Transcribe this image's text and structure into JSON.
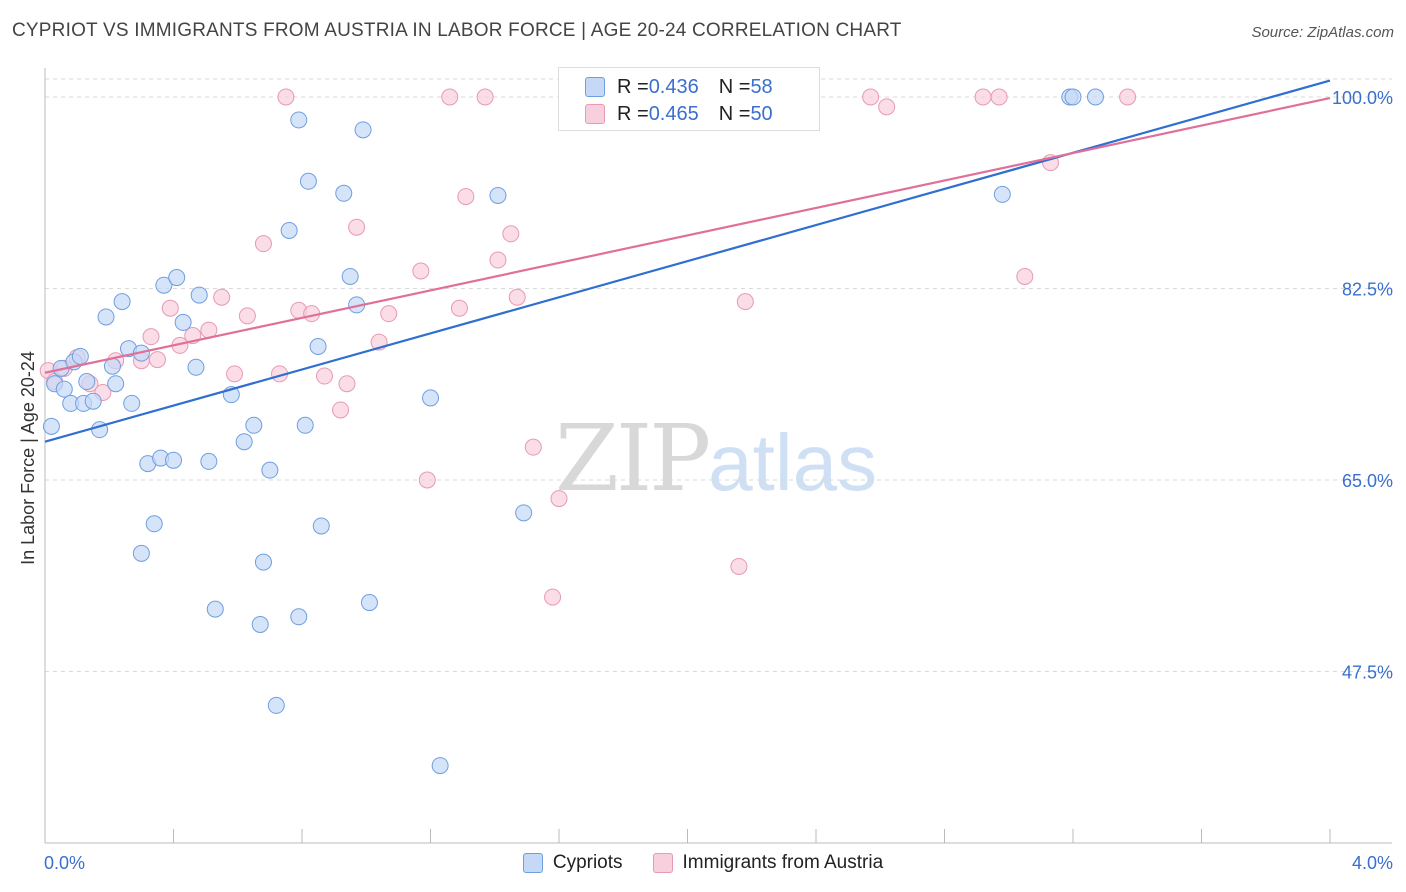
{
  "header": {
    "title": "CYPRIOT VS IMMIGRANTS FROM AUSTRIA IN LABOR FORCE | AGE 20-24 CORRELATION CHART",
    "source": "Source: ZipAtlas.com"
  },
  "watermark": {
    "zip": "ZIP",
    "atlas": "atlas"
  },
  "legend": {
    "rows": [
      {
        "r_label": "R = ",
        "r_value": "0.436",
        "n_label": "N = ",
        "n_value": "58"
      },
      {
        "r_label": "R = ",
        "r_value": "0.465",
        "n_label": "N = ",
        "n_value": "50"
      }
    ]
  },
  "bottom_legend": {
    "cypriots": "Cypriots",
    "austria": "Immigrants from Austria"
  },
  "colors": {
    "blue_fill": "#c5d9f6",
    "blue_stroke": "#6f9fe0",
    "blue_line": "#2f6fd0",
    "pink_fill": "#f8cfdc",
    "pink_stroke": "#e89ab3",
    "pink_line": "#e0709a",
    "tick_text": "#3a6fcf",
    "grid": "#d9d9d9"
  },
  "chart_data": {
    "type": "scatter",
    "title": "CYPRIOT VS IMMIGRANTS FROM AUSTRIA IN LABOR FORCE | AGE 20-24 CORRELATION CHART",
    "xlabel": "",
    "ylabel": "In Labor Force | Age 20-24",
    "xlim": [
      0,
      4.2
    ],
    "ylim": [
      29.5,
      101.5
    ],
    "x_tick_labels": [
      "0.0%",
      "4.0%"
    ],
    "x_tick_values": [
      0,
      4.0
    ],
    "y_tick_labels": [
      "47.5%",
      "65.0%",
      "82.5%",
      "100.0%"
    ],
    "y_tick_values": [
      47.5,
      65.0,
      82.5,
      100.0
    ],
    "grid": true,
    "legend": "top-center",
    "series": [
      {
        "name": "Cypriots",
        "points": [
          [
            0.02,
            69.9
          ],
          [
            0.03,
            73.8
          ],
          [
            0.05,
            75.2
          ],
          [
            0.06,
            73.3
          ],
          [
            0.08,
            72.0
          ],
          [
            0.09,
            75.8
          ],
          [
            0.11,
            76.3
          ],
          [
            0.12,
            72.0
          ],
          [
            0.13,
            74.0
          ],
          [
            0.15,
            72.2
          ],
          [
            0.17,
            69.6
          ],
          [
            0.19,
            79.9
          ],
          [
            0.21,
            75.4
          ],
          [
            0.22,
            73.8
          ],
          [
            0.24,
            81.3
          ],
          [
            0.26,
            77.0
          ],
          [
            0.27,
            72.0
          ],
          [
            0.3,
            76.6
          ],
          [
            0.32,
            66.5
          ],
          [
            0.34,
            61.0
          ],
          [
            0.3,
            58.3
          ],
          [
            0.36,
            67.0
          ],
          [
            0.37,
            82.8
          ],
          [
            0.4,
            66.8
          ],
          [
            0.41,
            83.5
          ],
          [
            0.43,
            79.4
          ],
          [
            0.47,
            75.3
          ],
          [
            0.48,
            81.9
          ],
          [
            0.51,
            66.7
          ],
          [
            0.53,
            53.2
          ],
          [
            0.58,
            72.8
          ],
          [
            0.62,
            68.5
          ],
          [
            0.65,
            70.0
          ],
          [
            0.67,
            51.8
          ],
          [
            0.68,
            57.5
          ],
          [
            0.7,
            65.9
          ],
          [
            0.72,
            44.4
          ],
          [
            0.76,
            87.8
          ],
          [
            0.79,
            97.9
          ],
          [
            0.79,
            52.5
          ],
          [
            0.81,
            70.0
          ],
          [
            0.82,
            92.3
          ],
          [
            0.85,
            77.2
          ],
          [
            0.86,
            60.8
          ],
          [
            0.93,
            91.2
          ],
          [
            0.95,
            83.6
          ],
          [
            0.97,
            81.0
          ],
          [
            0.99,
            97.0
          ],
          [
            1.01,
            53.8
          ],
          [
            1.2,
            72.5
          ],
          [
            1.23,
            38.9
          ],
          [
            1.41,
            91.0
          ],
          [
            1.49,
            62.0
          ],
          [
            1.73,
            100.0
          ],
          [
            2.98,
            91.1
          ],
          [
            3.19,
            100.0
          ],
          [
            3.2,
            100.0
          ],
          [
            3.27,
            100.0
          ]
        ],
        "trend": {
          "x": [
            0,
            4.0
          ],
          "y": [
            68.5,
            101.5
          ]
        }
      },
      {
        "name": "Immigrants from Austria",
        "points": [
          [
            0.01,
            75.0
          ],
          [
            0.03,
            74.0
          ],
          [
            0.06,
            75.2
          ],
          [
            0.1,
            76.2
          ],
          [
            0.14,
            73.8
          ],
          [
            0.18,
            73.0
          ],
          [
            0.22,
            75.9
          ],
          [
            0.3,
            75.9
          ],
          [
            0.33,
            78.1
          ],
          [
            0.35,
            76.0
          ],
          [
            0.39,
            80.7
          ],
          [
            0.42,
            77.3
          ],
          [
            0.46,
            78.2
          ],
          [
            0.51,
            78.7
          ],
          [
            0.55,
            81.7
          ],
          [
            0.59,
            74.7
          ],
          [
            0.63,
            80.0
          ],
          [
            0.68,
            86.6
          ],
          [
            0.73,
            74.7
          ],
          [
            0.75,
            100.0
          ],
          [
            0.79,
            80.5
          ],
          [
            0.83,
            80.2
          ],
          [
            0.87,
            74.5
          ],
          [
            0.92,
            71.4
          ],
          [
            0.94,
            73.8
          ],
          [
            0.97,
            88.1
          ],
          [
            1.04,
            77.6
          ],
          [
            1.07,
            80.2
          ],
          [
            1.17,
            84.1
          ],
          [
            1.19,
            65.0
          ],
          [
            1.26,
            100.0
          ],
          [
            1.29,
            80.7
          ],
          [
            1.31,
            90.9
          ],
          [
            1.37,
            100.0
          ],
          [
            1.41,
            85.1
          ],
          [
            1.45,
            87.5
          ],
          [
            1.47,
            81.7
          ],
          [
            1.52,
            68.0
          ],
          [
            1.58,
            54.3
          ],
          [
            1.6,
            63.3
          ],
          [
            2.08,
            100.0
          ],
          [
            2.16,
            57.1
          ],
          [
            2.18,
            81.3
          ],
          [
            2.57,
            100.0
          ],
          [
            2.62,
            99.1
          ],
          [
            2.92,
            100.0
          ],
          [
            2.97,
            100.0
          ],
          [
            3.05,
            83.6
          ],
          [
            3.13,
            94.0
          ],
          [
            3.37,
            100.0
          ]
        ],
        "trend": {
          "x": [
            0,
            4.0
          ],
          "y": [
            74.8,
            99.9
          ]
        }
      }
    ]
  }
}
